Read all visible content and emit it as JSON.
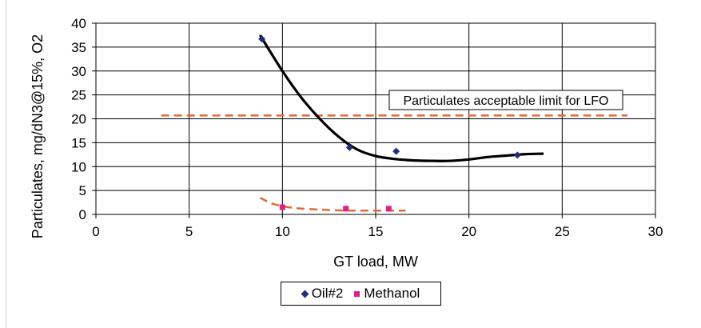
{
  "chart_data": {
    "type": "scatter",
    "title": "",
    "xlabel": "GT load, MW",
    "ylabel": "Particulates, mg/dN3@15%, O2",
    "xlim": [
      0,
      30
    ],
    "ylim": [
      0,
      40
    ],
    "x_ticks": [
      0,
      5,
      10,
      15,
      20,
      25,
      30
    ],
    "y_ticks": [
      0,
      5,
      10,
      15,
      20,
      25,
      30,
      35,
      40
    ],
    "grid": true,
    "legend_position": "bottom",
    "series": [
      {
        "name": "Oil#2",
        "marker": "diamond",
        "color": "#1f2f7a",
        "points": [
          [
            8.9,
            36.7
          ],
          [
            13.6,
            14.0
          ],
          [
            16.1,
            13.2
          ],
          [
            22.6,
            12.4
          ]
        ],
        "trend": {
          "color": "#000000",
          "style": "solid",
          "points": [
            [
              8.8,
              37.5
            ],
            [
              10,
              30
            ],
            [
              11,
              24.5
            ],
            [
              12,
              20
            ],
            [
              13,
              16.3
            ],
            [
              14,
              13.6
            ],
            [
              15,
              12.2
            ],
            [
              16,
              11.6
            ],
            [
              17,
              11.3
            ],
            [
              18,
              11.2
            ],
            [
              19,
              11.2
            ],
            [
              20,
              11.5
            ],
            [
              21,
              12
            ],
            [
              22,
              12.3
            ],
            [
              23,
              12.6
            ],
            [
              24,
              12.7
            ]
          ]
        }
      },
      {
        "name": "Methanol",
        "marker": "square",
        "color": "#e0208a",
        "points": [
          [
            10.0,
            1.5
          ],
          [
            13.4,
            1.2
          ],
          [
            15.7,
            1.2
          ]
        ],
        "trend": {
          "color": "#e2683a",
          "style": "dashed",
          "points": [
            [
              8.8,
              3.5
            ],
            [
              9.5,
              2.2
            ],
            [
              10.5,
              1.4
            ],
            [
              12,
              1.0
            ],
            [
              13.5,
              0.8
            ],
            [
              15,
              0.8
            ],
            [
              16.6,
              0.8
            ]
          ]
        }
      }
    ],
    "reference_lines": [
      {
        "label": "Particulates acceptable limit for LFO",
        "y": 20.7,
        "x_range": [
          3.5,
          28.5
        ],
        "color": "#e2683a",
        "style": "dashed"
      }
    ]
  }
}
